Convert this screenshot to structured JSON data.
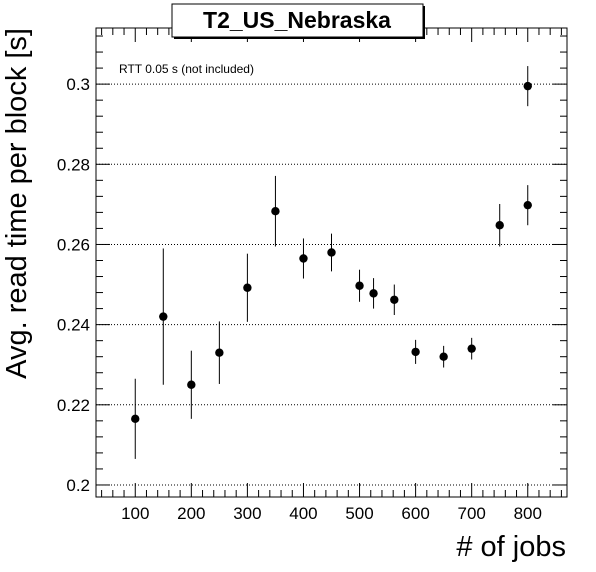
{
  "chart_data": {
    "type": "scatter",
    "title": "T2_US_Nebraska",
    "xlabel": "# of jobs",
    "ylabel": "Avg. read time per block [s]",
    "annotation": "RTT 0.05 s (not included)",
    "xlim": [
      30,
      870
    ],
    "ylim": [
      0.197,
      0.314
    ],
    "x_ticks": [
      100,
      200,
      300,
      400,
      500,
      600,
      700,
      800
    ],
    "x_tick_labels": [
      "100",
      "200",
      "300",
      "400",
      "500",
      "600",
      "700",
      "800"
    ],
    "y_ticks": [
      0.2,
      0.22,
      0.24,
      0.26,
      0.28,
      0.3
    ],
    "y_tick_labels": [
      "0.2",
      "0.22",
      "0.24",
      "0.26",
      "0.28",
      "0.3"
    ],
    "grid_y": true,
    "grid_x": false,
    "points": [
      {
        "x": 100,
        "y": 0.2165,
        "err": 0.01
      },
      {
        "x": 150,
        "y": 0.242,
        "err": 0.017
      },
      {
        "x": 200,
        "y": 0.225,
        "err": 0.0085
      },
      {
        "x": 250,
        "y": 0.233,
        "err": 0.0078
      },
      {
        "x": 300,
        "y": 0.2492,
        "err": 0.0085
      },
      {
        "x": 350,
        "y": 0.2683,
        "err": 0.0088
      },
      {
        "x": 400,
        "y": 0.2565,
        "err": 0.005
      },
      {
        "x": 450,
        "y": 0.258,
        "err": 0.0047
      },
      {
        "x": 500,
        "y": 0.2497,
        "err": 0.004
      },
      {
        "x": 525,
        "y": 0.2478,
        "err": 0.0038
      },
      {
        "x": 562,
        "y": 0.2462,
        "err": 0.0038
      },
      {
        "x": 600,
        "y": 0.2332,
        "err": 0.003
      },
      {
        "x": 650,
        "y": 0.232,
        "err": 0.0027
      },
      {
        "x": 700,
        "y": 0.234,
        "err": 0.0027
      },
      {
        "x": 750,
        "y": 0.2648,
        "err": 0.0053
      },
      {
        "x": 800,
        "y": 0.2698,
        "err": 0.005
      },
      {
        "x": 800,
        "y": 0.2995,
        "err": 0.005
      }
    ]
  }
}
